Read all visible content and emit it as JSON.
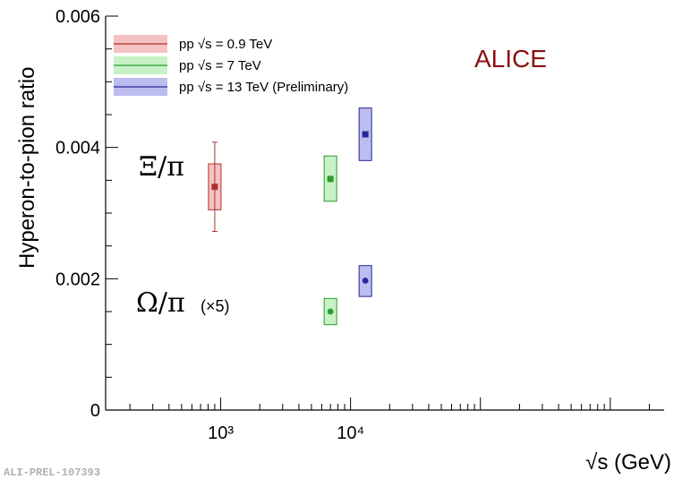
{
  "chart_data": {
    "type": "scatter",
    "xscale": "log",
    "xlim": [
      130,
      2600000
    ],
    "ylim": [
      0,
      0.006
    ],
    "xlabel": "√s (GeV)",
    "ylabel": "Hyperon-to-pion ratio",
    "yticks": [
      "0",
      "0.002",
      "0.004",
      "0.006"
    ],
    "xticks": [
      "10³",
      "10⁴"
    ],
    "grid": false,
    "legend_position": "top-left",
    "legend": [
      {
        "label": "pp  √s = 0.9 TeV",
        "color": "#b03030",
        "fill": "#f4c2c2"
      },
      {
        "label": "pp  √s = 7 TeV",
        "color": "#2e9b2e",
        "fill": "#c6f2c6"
      },
      {
        "label": "pp  √s = 13 TeV (Preliminary)",
        "color": "#28289a",
        "fill": "#bcbcee"
      }
    ],
    "series": [
      {
        "name": "Ξ/π",
        "points": [
          {
            "x": 900,
            "y": 0.0034,
            "stat_err": 0.00068,
            "sys_low": 0.00305,
            "sys_high": 0.00375,
            "color": "#b03030",
            "fill": "#f4c2c2",
            "marker": "square"
          },
          {
            "x": 7000,
            "y": 0.00352,
            "stat_err": 2e-05,
            "sys_low": 0.00318,
            "sys_high": 0.00387,
            "color": "#2e9b2e",
            "fill": "#c6f2c6",
            "marker": "square"
          },
          {
            "x": 13000,
            "y": 0.0042,
            "stat_err": 2e-05,
            "sys_low": 0.0038,
            "sys_high": 0.0046,
            "color": "#28289a",
            "fill": "#bcbcee",
            "marker": "square"
          }
        ]
      },
      {
        "name": "Ω/π (×5)",
        "points": [
          {
            "x": 7000,
            "y": 0.0015,
            "stat_err": 3e-05,
            "sys_low": 0.0013,
            "sys_high": 0.0017,
            "color": "#2e9b2e",
            "fill": "#c6f2c6",
            "marker": "circle"
          },
          {
            "x": 13000,
            "y": 0.00197,
            "stat_err": 3e-05,
            "sys_low": 0.00173,
            "sys_high": 0.0022,
            "color": "#28289a",
            "fill": "#bcbcee",
            "marker": "circle"
          }
        ]
      }
    ],
    "annotations": {
      "experiment": "ALICE",
      "experiment_color": "#8b1010",
      "xi_label": "Ξ/π",
      "omega_label": "Ω/π",
      "omega_scale": "(×5)",
      "footer": "ALI-PREL-107393"
    }
  }
}
